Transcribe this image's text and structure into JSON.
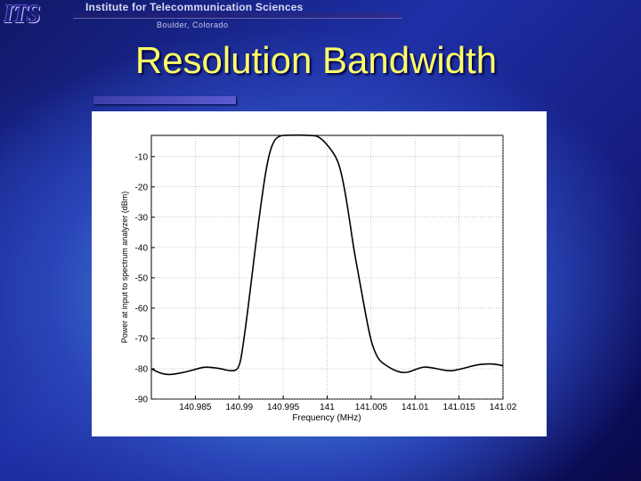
{
  "header": {
    "org_name": "Institute for Telecommunication Sciences",
    "location": "Boulder, Colorado",
    "logo_text": "ITS"
  },
  "slide": {
    "title": "Resolution Bandwidth"
  },
  "colors": {
    "title": "#ffff66",
    "background": "#2a45b8",
    "plot_line": "#000000"
  },
  "chart_data": {
    "type": "line",
    "title": "",
    "xlabel": "Frequency (MHz)",
    "ylabel": "Power at input to spectrum analyzer (dBm)",
    "xlim": [
      140.98,
      141.02
    ],
    "ylim": [
      -90,
      -3
    ],
    "x_ticks": [
      140.985,
      140.99,
      140.995,
      141,
      141.005,
      141.01,
      141.015,
      141.02
    ],
    "x_tick_labels": [
      "140.985",
      "140.99",
      "140.995",
      "141",
      "141.005",
      "141.01",
      "141.015",
      "141.02"
    ],
    "y_ticks": [
      -10,
      -20,
      -30,
      -40,
      -50,
      -60,
      -70,
      -80,
      -90
    ],
    "y_tick_labels": [
      "-10",
      "-20",
      "-30",
      "-40",
      "-50",
      "-60",
      "-70",
      "-80",
      "-90"
    ],
    "grid": true,
    "legend": "none",
    "series": [
      {
        "x": [
          140.98,
          140.981,
          140.982,
          140.983,
          140.984,
          140.985,
          140.986,
          140.987,
          140.988,
          140.989,
          140.99,
          140.9905,
          140.991,
          140.9915,
          140.992,
          140.9925,
          140.993,
          140.9935,
          140.994,
          140.9945,
          140.995,
          140.996,
          140.997,
          140.998,
          140.999,
          141.0,
          141.001,
          141.0015,
          141.002,
          141.0025,
          141.003,
          141.0035,
          141.004,
          141.0045,
          141.005,
          141.0055,
          141.006,
          141.007,
          141.008,
          141.009,
          141.01,
          141.011,
          141.012,
          141.013,
          141.014,
          141.015,
          141.016,
          141.017,
          141.018,
          141.019,
          141.02
        ],
        "y": [
          -80.0,
          -81.5,
          -82.0,
          -81.6,
          -81.0,
          -80.2,
          -79.4,
          -79.6,
          -80.0,
          -80.8,
          -80.3,
          -71.0,
          -60.0,
          -48.0,
          -36.0,
          -25.0,
          -15.0,
          -8.0,
          -4.5,
          -3.3,
          -3.0,
          -2.9,
          -2.9,
          -3.0,
          -3.2,
          -6.0,
          -10.0,
          -14.0,
          -21.0,
          -30.0,
          -40.0,
          -48.0,
          -56.0,
          -64.0,
          -71.0,
          -75.0,
          -77.5,
          -79.5,
          -81.0,
          -81.4,
          -80.3,
          -79.3,
          -79.7,
          -80.3,
          -80.8,
          -80.2,
          -79.5,
          -78.7,
          -78.4,
          -78.4,
          -79.0
        ]
      }
    ]
  }
}
